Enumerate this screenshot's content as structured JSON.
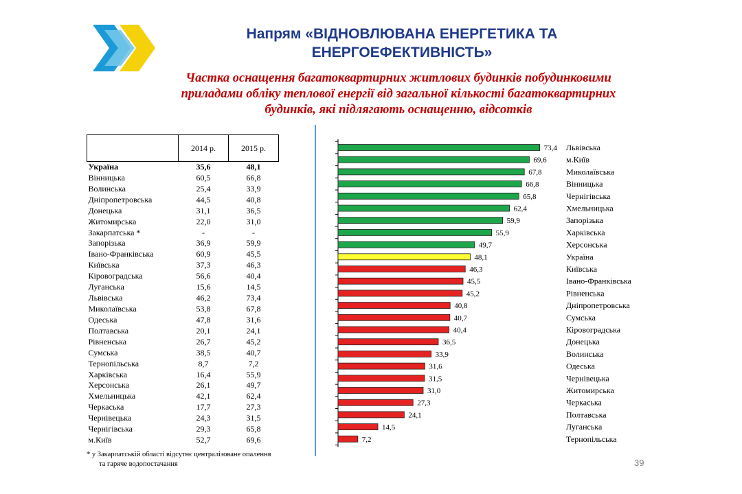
{
  "slide": {
    "title_lines": [
      "Напрям «ВІДНОВЛЮВАНА ЕНЕРГЕТИКА ТА",
      "ЕНЕРГОЕФЕКТИВНІСТЬ»"
    ],
    "subtitle_lines": [
      "Частка оснащення багатоквартирних житлових будинків побудинковими",
      "приладами обліку теплової енергії від загальної кількості багатоквартирних",
      "будинків, які підлягають оснащенню, відсотків"
    ],
    "page_number": "39",
    "footnote_lines": [
      "*  у Закарпатській області відсутнє централізоване опалення",
      "та гаряче водопостачання"
    ]
  },
  "colors": {
    "title": "#1f3a8a",
    "subtitle": "#c00000",
    "above_ukraine": "#1ea64a",
    "ukraine": "#ffff33",
    "below_ukraine": "#e52222",
    "divider": "#5b9bd5",
    "logo_blue": "#1a9ad6",
    "logo_yellow": "#f5d10b"
  },
  "table": {
    "headers": [
      "",
      "2014 р.",
      "2015 р."
    ],
    "rows": [
      {
        "region": "Україна",
        "y2014": "35,6",
        "y2015": "48,1",
        "bold": true
      },
      {
        "region": "Вінницька",
        "y2014": "60,5",
        "y2015": "66,8"
      },
      {
        "region": "Волинська",
        "y2014": "25,4",
        "y2015": "33,9"
      },
      {
        "region": "Дніпропетровська",
        "y2014": "44,5",
        "y2015": "40,8"
      },
      {
        "region": "Донецька",
        "y2014": "31,1",
        "y2015": "36,5"
      },
      {
        "region": "Житомирська",
        "y2014": "22,0",
        "y2015": "31,0"
      },
      {
        "region": "Закарпатська *",
        "y2014": "-",
        "y2015": "-"
      },
      {
        "region": "Запорізька",
        "y2014": "36,9",
        "y2015": "59,9"
      },
      {
        "region": "Івано-Франківська",
        "y2014": "60,9",
        "y2015": "45,5"
      },
      {
        "region": "Київська",
        "y2014": "37,3",
        "y2015": "46,3"
      },
      {
        "region": "Кіровоградська",
        "y2014": "56,6",
        "y2015": "40,4"
      },
      {
        "region": "Луганська",
        "y2014": "15,6",
        "y2015": "14,5"
      },
      {
        "region": "Львівська",
        "y2014": "46,2",
        "y2015": "73,4"
      },
      {
        "region": "Миколаївська",
        "y2014": "53,8",
        "y2015": "67,8"
      },
      {
        "region": "Одеська",
        "y2014": "47,8",
        "y2015": "31,6"
      },
      {
        "region": "Полтавська",
        "y2014": "20,1",
        "y2015": "24,1"
      },
      {
        "region": "Рівненська",
        "y2014": "26,7",
        "y2015": "45,2"
      },
      {
        "region": "Сумська",
        "y2014": "38,5",
        "y2015": "40,7"
      },
      {
        "region": "Тернопільська",
        "y2014": "8,7",
        "y2015": "7,2"
      },
      {
        "region": "Харківська",
        "y2014": "16,4",
        "y2015": "55,9"
      },
      {
        "region": "Херсонська",
        "y2014": "26,1",
        "y2015": "49,7"
      },
      {
        "region": "Хмельницька",
        "y2014": "42,1",
        "y2015": "62,4"
      },
      {
        "region": "Черкаська",
        "y2014": "17,7",
        "y2015": "27,3"
      },
      {
        "region": "Чернівецька",
        "y2014": "24,3",
        "y2015": "31,5"
      },
      {
        "region": "Чернігівська",
        "y2014": "29,3",
        "y2015": "65,8"
      },
      {
        "region": "м.Київ",
        "y2014": "52,7",
        "y2015": "69,6"
      }
    ]
  },
  "chart_data": {
    "type": "bar",
    "orientation": "horizontal",
    "xlim": [
      0,
      80
    ],
    "grid": false,
    "categories": [
      "Львівська",
      "м.Київ",
      "Миколаївська",
      "Вінницька",
      "Чернігівська",
      "Хмельницька",
      "Запорізька",
      "Харківська",
      "Херсонська",
      "Україна",
      "Київська",
      "Івано-Франківська",
      "Рівненська",
      "Дніпропетровська",
      "Сумська",
      "Кіровоградська",
      "Донецька",
      "Волинська",
      "Одеська",
      "Чернівецька",
      "Житомирська",
      "Черкаська",
      "Полтавська",
      "Луганська",
      "Тернопільська"
    ],
    "values": [
      73.4,
      69.6,
      67.8,
      66.8,
      65.8,
      62.4,
      59.9,
      55.9,
      49.7,
      48.1,
      46.3,
      45.5,
      45.2,
      40.8,
      40.7,
      40.4,
      36.5,
      33.9,
      31.6,
      31.5,
      31.0,
      27.3,
      24.1,
      14.5,
      7.2
    ],
    "value_labels": [
      "73,4",
      "69,6",
      "67,8",
      "66,8",
      "65,8",
      "62,4",
      "59,9",
      "55,9",
      "49,7",
      "48,1",
      "46,3",
      "45,5",
      "45,2",
      "40,8",
      "40,7",
      "40,4",
      "36,5",
      "33,9",
      "31,6",
      "31,5",
      "31,0",
      "27,3",
      "24,1",
      "14,5",
      "7,2"
    ]
  }
}
